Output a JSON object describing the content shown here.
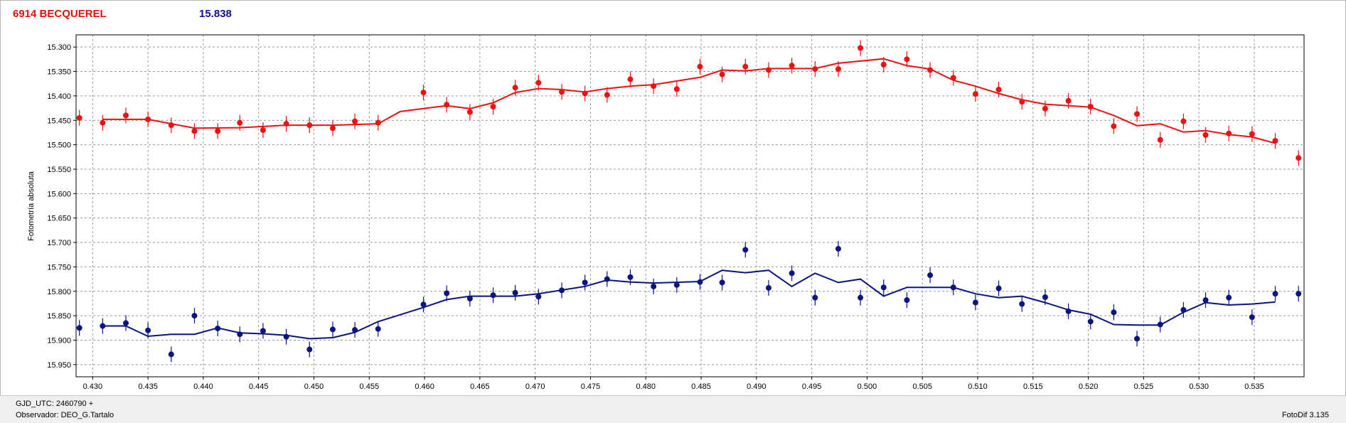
{
  "header": {
    "object_name": "6914 BECQUEREL",
    "magnitude": "15.838"
  },
  "footer": {
    "gjd": "GJD_UTC: 2460790 +",
    "observer": "Observador: DEO_G.Tartalo",
    "software": "FotoDif 3.135"
  },
  "colors": {
    "red_series": "#ee1111",
    "blue_series": "#0a1580",
    "grid": "#999999"
  },
  "chart_data": {
    "type": "scatter",
    "title": "",
    "xlabel": "",
    "ylabel": "Fotometría absoluta",
    "xlim": [
      0.4285,
      0.5395
    ],
    "ylim": [
      15.975,
      15.275
    ],
    "y_inverted": true,
    "grid": true,
    "xticks": [
      0.43,
      0.435,
      0.44,
      0.445,
      0.45,
      0.455,
      0.46,
      0.465,
      0.47,
      0.475,
      0.48,
      0.485,
      0.49,
      0.495,
      0.5,
      0.505,
      0.51,
      0.515,
      0.52,
      0.525,
      0.53,
      0.535
    ],
    "yticks": [
      15.3,
      15.35,
      15.4,
      15.45,
      15.5,
      15.55,
      15.6,
      15.65,
      15.7,
      15.75,
      15.8,
      15.85,
      15.9,
      15.95
    ],
    "series": [
      {
        "color": "#ee1111",
        "points": [
          [
            0.4288,
            15.445
          ],
          [
            0.4309,
            15.455
          ],
          [
            0.433,
            15.44
          ],
          [
            0.435,
            15.448
          ],
          [
            0.4371,
            15.46
          ],
          [
            0.4392,
            15.472
          ],
          [
            0.4413,
            15.472
          ],
          [
            0.4433,
            15.455
          ],
          [
            0.4454,
            15.47
          ],
          [
            0.4475,
            15.457
          ],
          [
            0.4496,
            15.46
          ],
          [
            0.4517,
            15.466
          ],
          [
            0.4537,
            15.452
          ],
          [
            0.4558,
            15.455
          ],
          [
            0.4599,
            15.393
          ],
          [
            0.462,
            15.418
          ],
          [
            0.4641,
            15.433
          ],
          [
            0.4662,
            15.422
          ],
          [
            0.4682,
            15.383
          ],
          [
            0.4703,
            15.373
          ],
          [
            0.4724,
            15.392
          ],
          [
            0.4745,
            15.395
          ],
          [
            0.4765,
            15.398
          ],
          [
            0.4786,
            15.366
          ],
          [
            0.4807,
            15.38
          ],
          [
            0.4828,
            15.386
          ],
          [
            0.4849,
            15.34
          ],
          [
            0.4869,
            15.356
          ],
          [
            0.489,
            15.34
          ],
          [
            0.4911,
            15.347
          ],
          [
            0.4932,
            15.338
          ],
          [
            0.4953,
            15.345
          ],
          [
            0.4974,
            15.345
          ],
          [
            0.4994,
            15.302
          ],
          [
            0.5015,
            15.336
          ],
          [
            0.5036,
            15.325
          ],
          [
            0.5057,
            15.347
          ],
          [
            0.5078,
            15.363
          ],
          [
            0.5098,
            15.396
          ],
          [
            0.5119,
            15.387
          ],
          [
            0.514,
            15.412
          ],
          [
            0.5161,
            15.426
          ],
          [
            0.5182,
            15.41
          ],
          [
            0.5202,
            15.422
          ],
          [
            0.5223,
            15.462
          ],
          [
            0.5244,
            15.437
          ],
          [
            0.5265,
            15.49
          ],
          [
            0.5286,
            15.452
          ],
          [
            0.5306,
            15.48
          ],
          [
            0.5327,
            15.477
          ],
          [
            0.5348,
            15.478
          ],
          [
            0.5369,
            15.492
          ],
          [
            0.539,
            15.527
          ]
        ],
        "trend": [
          [
            0.4309,
            15.448
          ],
          [
            0.435,
            15.448
          ],
          [
            0.4392,
            15.466
          ],
          [
            0.4433,
            15.465
          ],
          [
            0.4475,
            15.46
          ],
          [
            0.4517,
            15.46
          ],
          [
            0.4558,
            15.457
          ],
          [
            0.4578,
            15.432
          ],
          [
            0.462,
            15.42
          ],
          [
            0.4641,
            15.426
          ],
          [
            0.4662,
            15.414
          ],
          [
            0.4682,
            15.393
          ],
          [
            0.4703,
            15.385
          ],
          [
            0.4724,
            15.387
          ],
          [
            0.4745,
            15.392
          ],
          [
            0.4765,
            15.385
          ],
          [
            0.4786,
            15.38
          ],
          [
            0.4807,
            15.377
          ],
          [
            0.4849,
            15.362
          ],
          [
            0.4869,
            15.347
          ],
          [
            0.489,
            15.349
          ],
          [
            0.4911,
            15.344
          ],
          [
            0.4953,
            15.344
          ],
          [
            0.4974,
            15.333
          ],
          [
            0.5015,
            15.324
          ],
          [
            0.5036,
            15.338
          ],
          [
            0.5057,
            15.345
          ],
          [
            0.5078,
            15.368
          ],
          [
            0.5098,
            15.38
          ],
          [
            0.5119,
            15.395
          ],
          [
            0.514,
            15.408
          ],
          [
            0.5161,
            15.417
          ],
          [
            0.5202,
            15.423
          ],
          [
            0.5223,
            15.44
          ],
          [
            0.5244,
            15.461
          ],
          [
            0.5265,
            15.457
          ],
          [
            0.5286,
            15.474
          ],
          [
            0.5306,
            15.471
          ],
          [
            0.5327,
            15.479
          ],
          [
            0.5348,
            15.484
          ],
          [
            0.5369,
            15.497
          ]
        ]
      },
      {
        "color": "#0a1580",
        "points": [
          [
            0.4288,
            15.875
          ],
          [
            0.4309,
            15.871
          ],
          [
            0.433,
            15.865
          ],
          [
            0.435,
            15.88
          ],
          [
            0.4371,
            15.929
          ],
          [
            0.4392,
            15.85
          ],
          [
            0.4413,
            15.876
          ],
          [
            0.4433,
            15.888
          ],
          [
            0.4454,
            15.881
          ],
          [
            0.4475,
            15.893
          ],
          [
            0.4496,
            15.919
          ],
          [
            0.4517,
            15.878
          ],
          [
            0.4537,
            15.879
          ],
          [
            0.4558,
            15.877
          ],
          [
            0.4599,
            15.827
          ],
          [
            0.462,
            15.804
          ],
          [
            0.4641,
            15.815
          ],
          [
            0.4662,
            15.808
          ],
          [
            0.4682,
            15.803
          ],
          [
            0.4703,
            15.811
          ],
          [
            0.4724,
            15.798
          ],
          [
            0.4745,
            15.782
          ],
          [
            0.4765,
            15.775
          ],
          [
            0.4786,
            15.771
          ],
          [
            0.4807,
            15.79
          ],
          [
            0.4828,
            15.787
          ],
          [
            0.4849,
            15.781
          ],
          [
            0.4869,
            15.782
          ],
          [
            0.489,
            15.715
          ],
          [
            0.4911,
            15.793
          ],
          [
            0.4932,
            15.763
          ],
          [
            0.4953,
            15.813
          ],
          [
            0.4974,
            15.713
          ],
          [
            0.4994,
            15.813
          ],
          [
            0.5015,
            15.792
          ],
          [
            0.5036,
            15.818
          ],
          [
            0.5057,
            15.767
          ],
          [
            0.5078,
            15.792
          ],
          [
            0.5098,
            15.823
          ],
          [
            0.5119,
            15.794
          ],
          [
            0.514,
            15.826
          ],
          [
            0.5161,
            15.812
          ],
          [
            0.5182,
            15.841
          ],
          [
            0.5202,
            15.862
          ],
          [
            0.5223,
            15.843
          ],
          [
            0.5244,
            15.897
          ],
          [
            0.5265,
            15.868
          ],
          [
            0.5286,
            15.838
          ],
          [
            0.5306,
            15.818
          ],
          [
            0.5327,
            15.813
          ],
          [
            0.5348,
            15.853
          ],
          [
            0.5369,
            15.805
          ],
          [
            0.539,
            15.805
          ]
        ],
        "trend": [
          [
            0.4309,
            15.871
          ],
          [
            0.433,
            15.871
          ],
          [
            0.435,
            15.892
          ],
          [
            0.4371,
            15.888
          ],
          [
            0.4392,
            15.888
          ],
          [
            0.4413,
            15.875
          ],
          [
            0.4433,
            15.885
          ],
          [
            0.4454,
            15.887
          ],
          [
            0.4475,
            15.89
          ],
          [
            0.4496,
            15.897
          ],
          [
            0.4517,
            15.895
          ],
          [
            0.4537,
            15.884
          ],
          [
            0.4558,
            15.862
          ],
          [
            0.4578,
            15.848
          ],
          [
            0.4599,
            15.833
          ],
          [
            0.462,
            15.817
          ],
          [
            0.4641,
            15.81
          ],
          [
            0.4682,
            15.81
          ],
          [
            0.4703,
            15.805
          ],
          [
            0.4745,
            15.79
          ],
          [
            0.4765,
            15.777
          ],
          [
            0.4786,
            15.781
          ],
          [
            0.4807,
            15.783
          ],
          [
            0.4849,
            15.78
          ],
          [
            0.4869,
            15.757
          ],
          [
            0.489,
            15.762
          ],
          [
            0.4911,
            15.757
          ],
          [
            0.4932,
            15.79
          ],
          [
            0.4953,
            15.763
          ],
          [
            0.4974,
            15.782
          ],
          [
            0.4994,
            15.775
          ],
          [
            0.5015,
            15.81
          ],
          [
            0.5036,
            15.792
          ],
          [
            0.5078,
            15.792
          ],
          [
            0.5098,
            15.805
          ],
          [
            0.5119,
            15.813
          ],
          [
            0.514,
            15.81
          ],
          [
            0.5161,
            15.823
          ],
          [
            0.5182,
            15.838
          ],
          [
            0.5202,
            15.847
          ],
          [
            0.5223,
            15.868
          ],
          [
            0.5244,
            15.869
          ],
          [
            0.5265,
            15.869
          ],
          [
            0.5286,
            15.843
          ],
          [
            0.5306,
            15.823
          ],
          [
            0.5327,
            15.828
          ],
          [
            0.5348,
            15.826
          ],
          [
            0.5369,
            15.822
          ]
        ]
      }
    ]
  }
}
